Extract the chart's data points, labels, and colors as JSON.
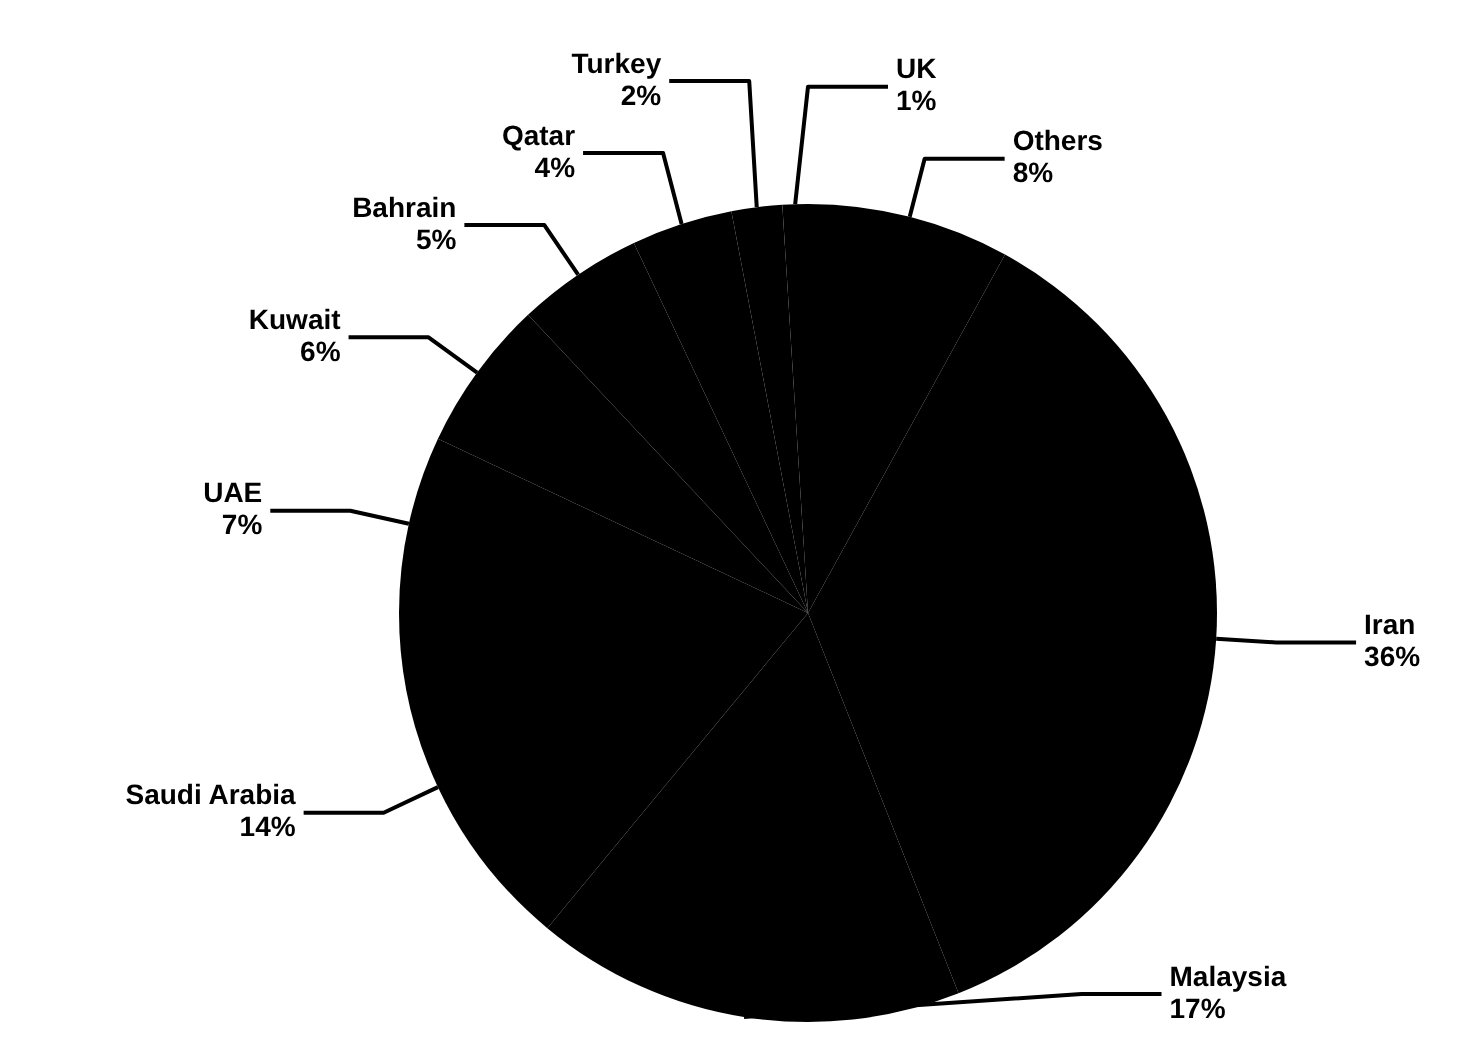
{
  "chart_data": {
    "type": "pie",
    "categories": [
      "Others",
      "Iran",
      "Malaysia",
      "Saudi Arabia",
      "UAE",
      "Kuwait",
      "Bahrain",
      "Qatar",
      "Turkey",
      "UK"
    ],
    "values": [
      8,
      36,
      17,
      14,
      7,
      6,
      5,
      4,
      2,
      1
    ],
    "value_labels": [
      "8%",
      "36%",
      "17%",
      "14%",
      "7%",
      "6%",
      "5%",
      "4%",
      "2%",
      "1%"
    ],
    "colors": [
      "#000000",
      "#000000",
      "#000000",
      "#000000",
      "#000000",
      "#000000",
      "#000000",
      "#000000",
      "#000000",
      "#000000"
    ],
    "legend": false
  }
}
